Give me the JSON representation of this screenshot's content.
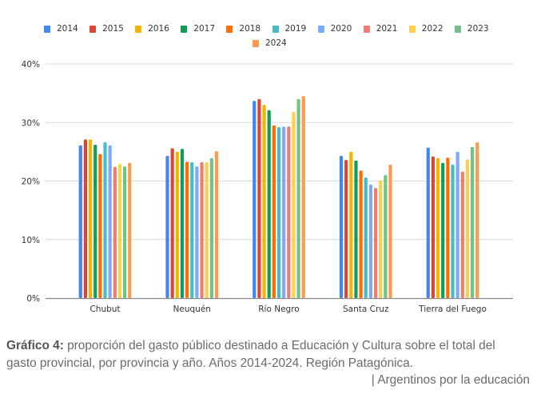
{
  "chart_data": {
    "type": "bar",
    "title": "",
    "xlabel": "",
    "ylabel": "",
    "ylim": [
      0,
      40
    ],
    "yticks": [
      "0%",
      "10%",
      "20%",
      "30%",
      "40%"
    ],
    "ytick_values": [
      0,
      10,
      20,
      30,
      40
    ],
    "grid": true,
    "legend_position": "top",
    "categories": [
      "Chubut",
      "Neuquén",
      "Río Negro",
      "Santa Cruz",
      "Tierra del Fuego"
    ],
    "series": [
      {
        "name": "2014",
        "color": "#4285f4",
        "values": [
          26.1,
          24.3,
          33.7,
          24.3,
          25.7
        ]
      },
      {
        "name": "2015",
        "color": "#db4437",
        "values": [
          27.1,
          25.6,
          34.0,
          23.6,
          24.2
        ]
      },
      {
        "name": "2016",
        "color": "#f4b400",
        "values": [
          27.1,
          25.0,
          33.0,
          25.0,
          23.9
        ]
      },
      {
        "name": "2017",
        "color": "#0f9d58",
        "values": [
          26.2,
          25.5,
          32.1,
          23.5,
          23.1
        ]
      },
      {
        "name": "2018",
        "color": "#ff6d01",
        "values": [
          24.6,
          23.3,
          29.5,
          21.8,
          24.0
        ]
      },
      {
        "name": "2019",
        "color": "#46bdc6",
        "values": [
          26.6,
          23.2,
          29.2,
          20.6,
          22.8
        ]
      },
      {
        "name": "2020",
        "color": "#7baaf7",
        "values": [
          26.1,
          22.5,
          29.3,
          19.4,
          25.0
        ]
      },
      {
        "name": "2021",
        "color": "#f07b72",
        "values": [
          22.4,
          23.2,
          29.3,
          18.8,
          21.6
        ]
      },
      {
        "name": "2022",
        "color": "#fcd04f",
        "values": [
          22.9,
          23.2,
          31.8,
          20.1,
          23.7
        ]
      },
      {
        "name": "2023",
        "color": "#71c287",
        "values": [
          22.5,
          23.9,
          34.0,
          21.0,
          25.8
        ]
      },
      {
        "name": "2024",
        "color": "#ff994d",
        "values": [
          23.1,
          25.1,
          34.5,
          22.8,
          26.6
        ]
      }
    ]
  },
  "caption": {
    "label": "Gráfico 4:",
    "text": " proporción del gasto público destinado a Educación y Cultura sobre el total del gasto provincial, por provincia y año. Años 2014-2024. Región Patagónica.",
    "source": "| Argentinos por la educación"
  }
}
